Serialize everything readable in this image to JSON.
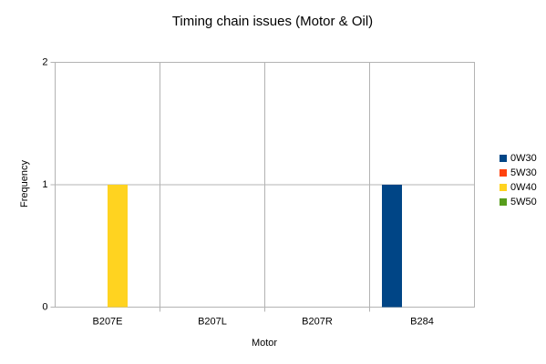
{
  "chart_data": {
    "type": "bar",
    "title": "Timing chain issues (Motor & Oil)",
    "x_label": "Motor",
    "y_label": "Frequency",
    "categories": [
      "B207E",
      "B207L",
      "B207R",
      "B284"
    ],
    "series": [
      {
        "name": "0W30",
        "color": "#004586",
        "values": [
          0,
          0,
          0,
          1
        ]
      },
      {
        "name": "5W30",
        "color": "#ff420e",
        "values": [
          0,
          0,
          0,
          0
        ]
      },
      {
        "name": "0W40",
        "color": "#ffd320",
        "values": [
          1,
          0,
          0,
          0
        ]
      },
      {
        "name": "5W50",
        "color": "#579d1c",
        "values": [
          0,
          0,
          0,
          0
        ]
      }
    ],
    "ylim": [
      0,
      2
    ],
    "yticks": [
      0,
      1,
      2
    ],
    "grid": true,
    "legend": "right"
  }
}
